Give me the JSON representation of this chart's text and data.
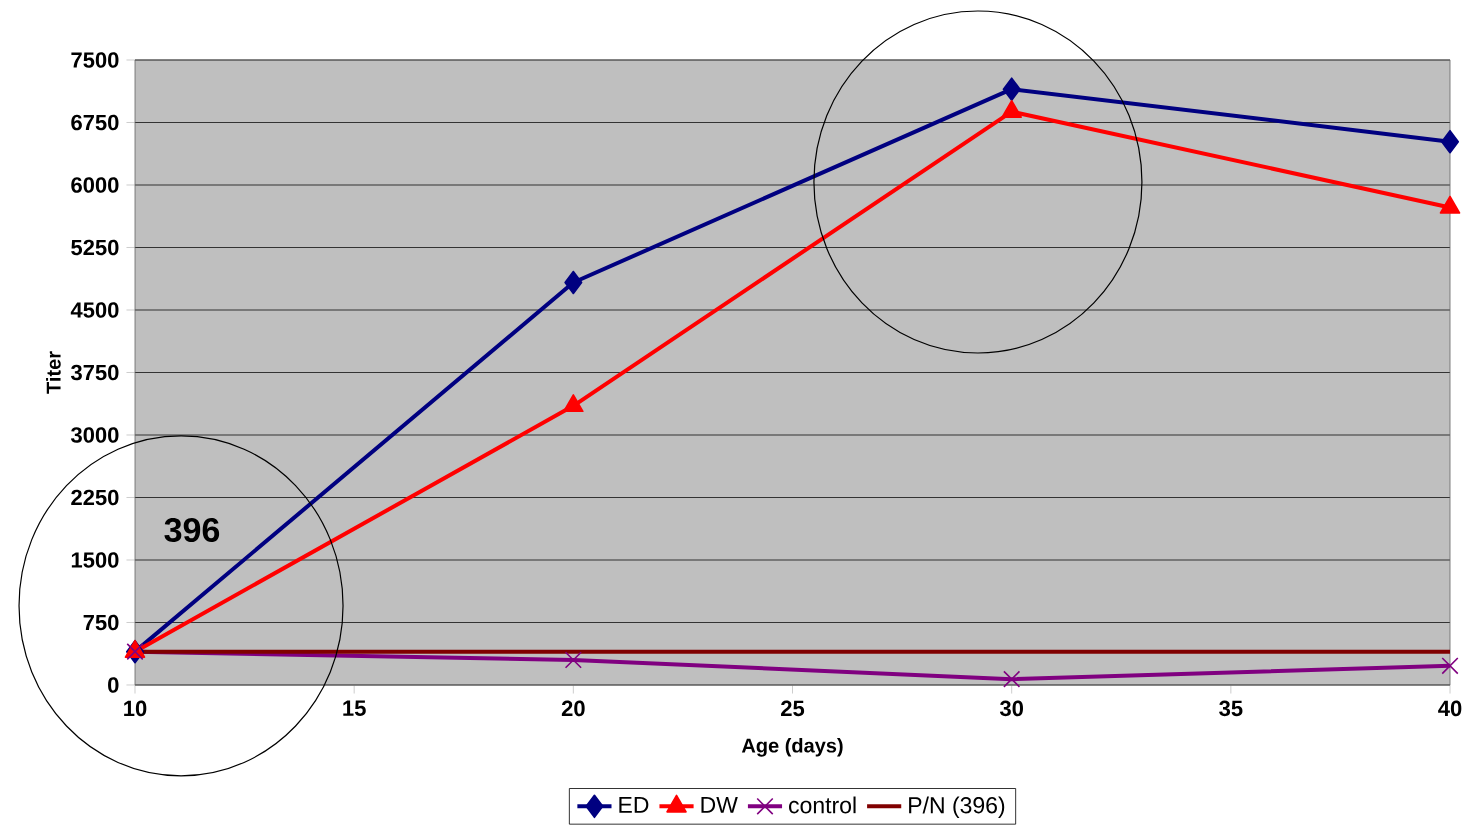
{
  "chart_data": {
    "type": "line",
    "xlabel": "Age (days)",
    "ylabel": "Titer",
    "x": [
      10,
      20,
      30,
      40
    ],
    "series": [
      {
        "name": "ED",
        "color": "#000080",
        "marker": "diamond",
        "values": [
          400,
          4830,
          7150,
          6520
        ]
      },
      {
        "name": "DW",
        "color": "#ff0000",
        "marker": "triangle",
        "values": [
          400,
          3350,
          6880,
          5730
        ]
      },
      {
        "name": "control",
        "color": "#800080",
        "marker": "cross",
        "values": [
          400,
          300,
          70,
          230
        ]
      },
      {
        "name": "P/N (396)",
        "color": "#800000",
        "marker": "none",
        "values": [
          400,
          400,
          400,
          400
        ]
      }
    ],
    "xlim": [
      10,
      40
    ],
    "xticks": [
      10,
      15,
      20,
      25,
      30,
      35,
      40
    ],
    "ylim": [
      0,
      7500
    ],
    "yticks": [
      0,
      750,
      1500,
      2250,
      3000,
      3750,
      4500,
      5250,
      6000,
      6750,
      7500
    ],
    "grid": "y",
    "legend": "bottom",
    "line_style": "solid",
    "annotations": [
      "396"
    ]
  }
}
